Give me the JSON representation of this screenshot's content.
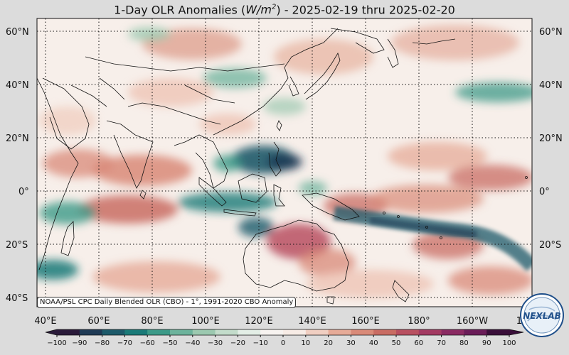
{
  "title": {
    "prefix": "1-Day OLR Anomalies (",
    "unit_base": "W/m",
    "unit_exp": "2",
    "suffix": ") - 2025-02-19 thru 2025-02-20"
  },
  "footnote": "NOAA/PSL CPC Daily Blended OLR (CBO) - 1°, 1991-2020 CBO Anomaly",
  "lat_labels": [
    "60°N",
    "40°N",
    "20°N",
    "0°",
    "20°S",
    "40°S"
  ],
  "lon_labels": [
    "40°E",
    "60°E",
    "80°E",
    "100°E",
    "120°E",
    "140°E",
    "160°E",
    "180°",
    "160°W",
    "14"
  ],
  "colorbar": {
    "ticks": [
      "−100",
      "−90",
      "−80",
      "−70",
      "−60",
      "−50",
      "−40",
      "−30",
      "−20",
      "−10",
      "0",
      "10",
      "20",
      "30",
      "40",
      "50",
      "60",
      "70",
      "80",
      "90",
      "100"
    ],
    "colors": [
      "#2a1a3a",
      "#1f3a55",
      "#1d5a6a",
      "#1a7a78",
      "#3c9a88",
      "#6db39c",
      "#9cc9b0",
      "#c3dccb",
      "#e3eee6",
      "#f7f3f0",
      "#f7ece6",
      "#f0cfc2",
      "#e6ab98",
      "#d98a78",
      "#c96c63",
      "#b85060",
      "#a33a62",
      "#8a2a62",
      "#6a1c58",
      "#3a0f3a"
    ]
  },
  "logo_text": "NEXLAB",
  "colors": {
    "background": "#dcdcdc",
    "neutral": "#f7f0ec",
    "wet": "#1d5a6a",
    "dry": "#c96c63"
  }
}
